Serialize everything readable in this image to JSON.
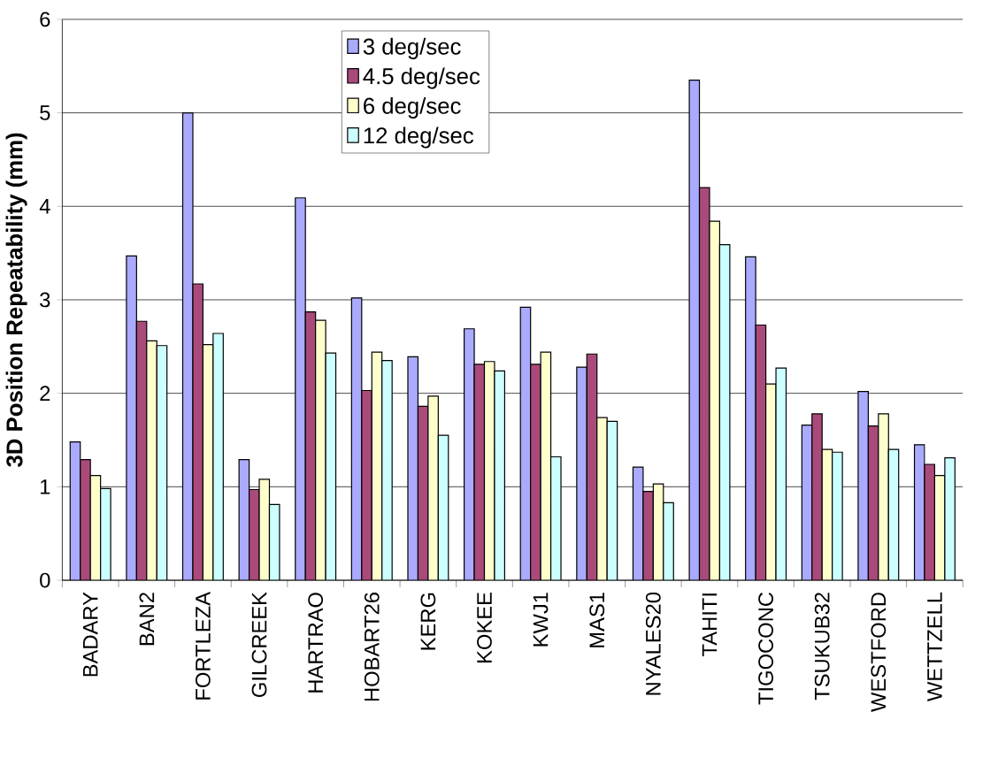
{
  "chart_data": {
    "type": "bar",
    "ylabel": "3D Position Repeatability (mm)",
    "categories": [
      "BADARY",
      "BAN2",
      "FORTLEZA",
      "GILCREEK",
      "HARTRAO",
      "HOBART26",
      "KERG",
      "KOKEE",
      "KWJ1",
      "MAS1",
      "NYALES20",
      "TAHITI",
      "TIGOCONC",
      "TSUKUB32",
      "WESTFORD",
      "WETTZELL"
    ],
    "series": [
      {
        "name": "3 deg/sec",
        "color": "#aaaaff",
        "values": [
          1.48,
          3.47,
          5.0,
          1.29,
          4.09,
          3.02,
          2.39,
          2.69,
          2.92,
          2.28,
          1.21,
          5.35,
          3.46,
          1.66,
          2.02,
          1.45
        ]
      },
      {
        "name": "4.5 deg/sec",
        "color": "#a94a7a",
        "values": [
          1.29,
          2.77,
          3.17,
          0.97,
          2.87,
          2.03,
          1.86,
          2.31,
          2.31,
          2.42,
          0.95,
          4.2,
          2.73,
          1.78,
          1.65,
          1.24
        ]
      },
      {
        "name": "6 deg/sec",
        "color": "#ffffcc",
        "values": [
          1.12,
          2.56,
          2.52,
          1.08,
          2.78,
          2.44,
          1.97,
          2.34,
          2.44,
          1.74,
          1.03,
          3.84,
          2.1,
          1.4,
          1.78,
          1.12
        ]
      },
      {
        "name": "12 deg/sec",
        "color": "#ccffff",
        "values": [
          0.98,
          2.51,
          2.64,
          0.81,
          2.43,
          2.35,
          1.55,
          2.24,
          1.32,
          1.7,
          0.83,
          3.59,
          2.27,
          1.37,
          1.4,
          1.31
        ]
      }
    ],
    "ylim": [
      0,
      6
    ],
    "yticks": [
      0,
      1,
      2,
      3,
      4,
      5,
      6
    ],
    "grid": "y",
    "legend": "top"
  }
}
